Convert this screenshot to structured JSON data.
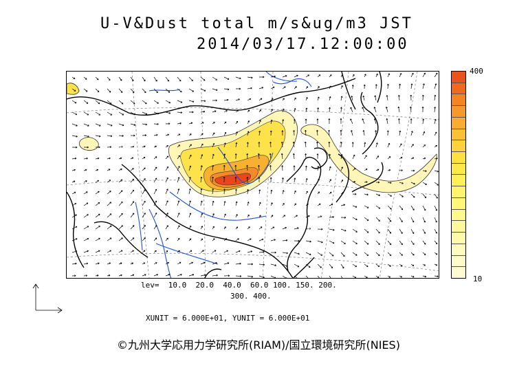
{
  "title": {
    "line1": "U-V&Dust total m/s&ug/m3 JST",
    "line2": "2014/03/17.12:00:00"
  },
  "colorbar": {
    "max_label": "400",
    "min_label": "10",
    "colors": [
      "#e8541c",
      "#ee6a1e",
      "#f28424",
      "#f59a2a",
      "#f8ac30",
      "#fbc036",
      "#fdd23c",
      "#fee040",
      "#ffe84a",
      "#fff05a",
      "#fff46a",
      "#fff67a",
      "#fff88c",
      "#fff99c",
      "#fffaac",
      "#fffbbc",
      "#fffccc",
      "#fffcd4"
    ]
  },
  "footer": {
    "levels_line1": "lev=  10.0  20.0  40.0  60.0 100. 150. 200.",
    "levels_line2": "300. 400.",
    "units": "XUNIT = 6.000E+01, YUNIT = 6.000E+01"
  },
  "copyright": "©九州大学応用力学研究所(RIAM)/国立環境研究所(NIES)",
  "colors": {
    "coastline": "#000000",
    "rivers": "#1f4fd8",
    "grid": "#777777",
    "dust_light": "#fff6b8",
    "dust_mid": "#fde24c",
    "dust_high": "#f48a2a",
    "dust_peak": "#e8461c"
  }
}
